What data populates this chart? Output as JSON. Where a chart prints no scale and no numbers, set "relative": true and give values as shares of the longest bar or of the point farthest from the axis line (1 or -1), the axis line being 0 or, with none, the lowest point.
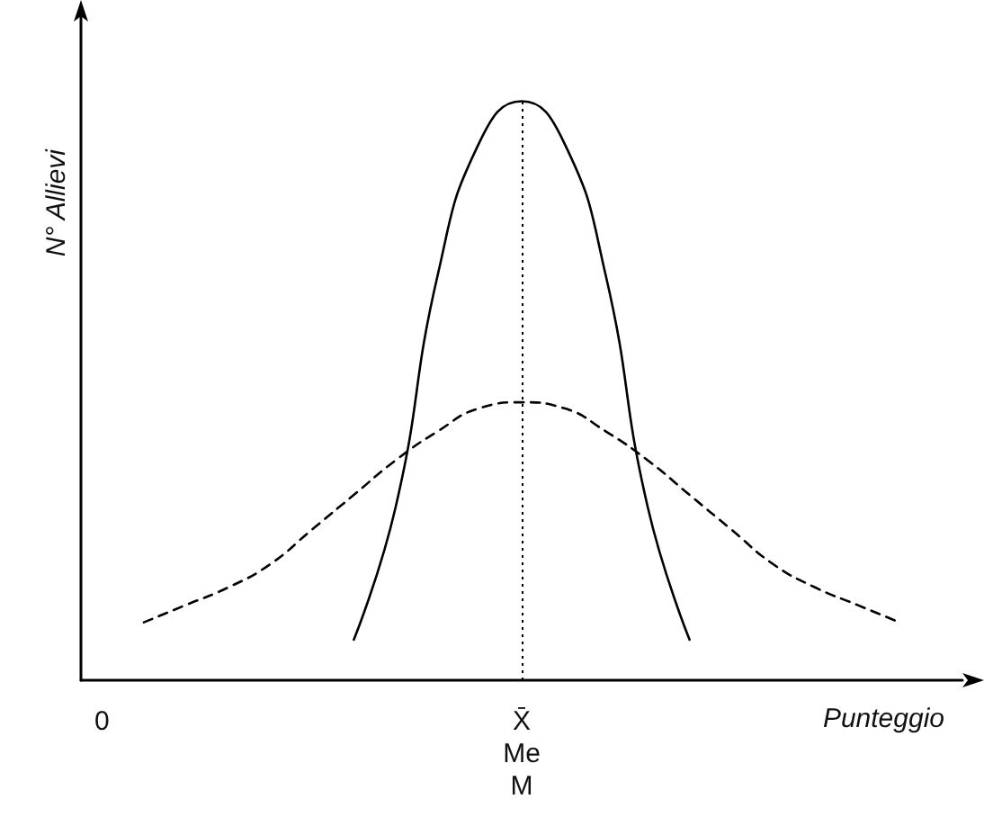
{
  "chart_data": {
    "type": "line",
    "relative": true,
    "xlabel": "Punteggio",
    "ylabel": "N° Allievi",
    "categories": [
      "0",
      null,
      null,
      null,
      null,
      null,
      null,
      null,
      null,
      null,
      "X̄\nMe\nM",
      null,
      null,
      null,
      null,
      null,
      null,
      null,
      null,
      null,
      null
    ],
    "series": [
      {
        "color": "#000000",
        "line_style": "dashed",
        "values": [
          null,
          0.1,
          0.13,
          0.16,
          0.2,
          0.26,
          0.32,
          0.38,
          0.43,
          0.47,
          0.48,
          0.47,
          0.43,
          0.38,
          0.32,
          0.26,
          0.2,
          0.16,
          0.13,
          0.1,
          null
        ]
      },
      {
        "color": "#000000",
        "line_style": "solid",
        "values": [
          null,
          null,
          null,
          null,
          null,
          null,
          0.07,
          0.3,
          0.7,
          0.93,
          1,
          0.93,
          0.7,
          0.3,
          0.07,
          null,
          null,
          null,
          null,
          null,
          null
        ]
      }
    ],
    "ref_lines": [
      {
        "axis": "x",
        "value": "X̄\nMe\nM",
        "line_style": "dotted",
        "color": "#000000"
      }
    ],
    "marker": "none",
    "grid": false
  }
}
